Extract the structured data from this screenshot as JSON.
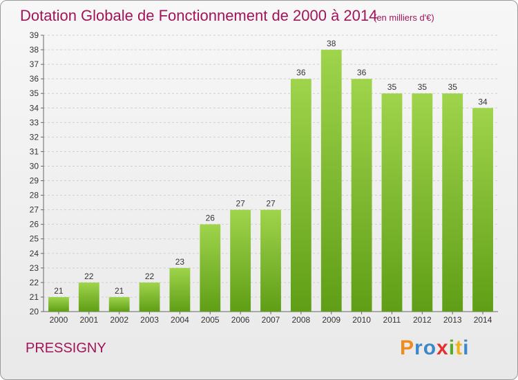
{
  "chart_data": {
    "type": "bar",
    "title": "Dotation Globale de Fonctionnement de 2000 à 2014",
    "subtitle": "(en milliers d'€)",
    "categories": [
      "2000",
      "2001",
      "2002",
      "2003",
      "2004",
      "2005",
      "2006",
      "2007",
      "2008",
      "2009",
      "2010",
      "2011",
      "2012",
      "2013",
      "2014"
    ],
    "values": [
      21,
      22,
      21,
      22,
      23,
      26,
      27,
      27,
      36,
      38,
      36,
      35,
      35,
      35,
      34
    ],
    "ylim": [
      20,
      39
    ],
    "yticks": [
      20,
      21,
      22,
      23,
      24,
      25,
      26,
      27,
      28,
      29,
      30,
      31,
      32,
      33,
      34,
      35,
      36,
      37,
      38,
      39
    ],
    "grid": true,
    "bar_color_top": "#9fd44c",
    "bar_color_bottom": "#5f9e16"
  },
  "commune": "PRESSIGNY",
  "brand": {
    "letters": [
      "P",
      "r",
      "o",
      "x",
      "i",
      "t",
      "i"
    ],
    "colors": [
      "#f08a1c",
      "#3a88c8",
      "#3a88c8",
      "#e2322f",
      "#5aaa2a",
      "#f0b21c",
      "#3a88c8"
    ]
  }
}
